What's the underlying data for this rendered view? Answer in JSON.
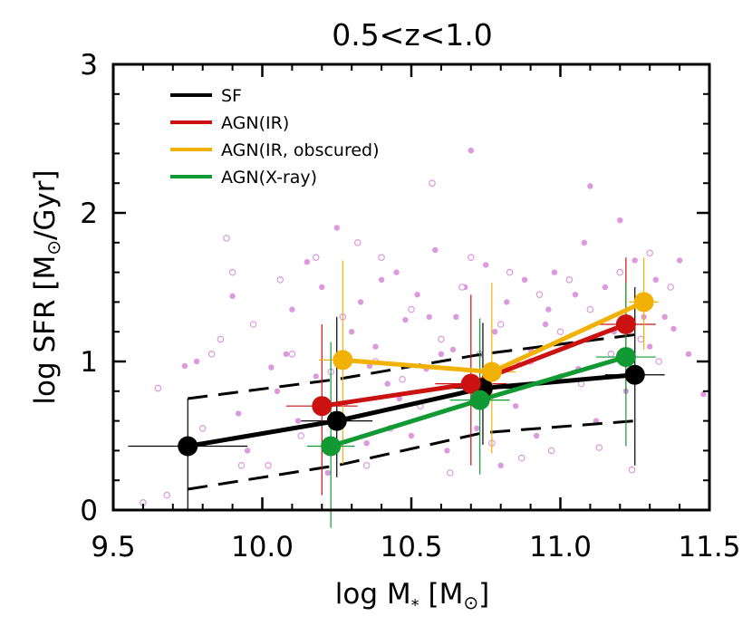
{
  "chart_data": {
    "type": "scatter",
    "title": "0.5<z<1.0",
    "xlabel": "log M",
    "xlabel_sub": "*",
    "xlabel_unit": "[M",
    "xlabel_unit_sub": "⊙",
    "xlabel_unit_close": "]",
    "ylabel": "log SFR [M",
    "ylabel_sub": "⊙",
    "ylabel_unit": "/Gyr]",
    "xlim": [
      9.5,
      11.5
    ],
    "ylim": [
      0,
      3
    ],
    "xticks": [
      {
        "value": 9.5,
        "label": "9.5"
      },
      {
        "value": 10.0,
        "label": "10.0"
      },
      {
        "value": 10.5,
        "label": "10.5"
      },
      {
        "value": 11.0,
        "label": "11.0"
      },
      {
        "value": 11.5,
        "label": "11.5"
      }
    ],
    "yticks": [
      {
        "value": 0,
        "label": "0"
      },
      {
        "value": 1,
        "label": "1"
      },
      {
        "value": 2,
        "label": "2"
      },
      {
        "value": 3,
        "label": "3"
      }
    ],
    "legend_position": "top-left",
    "series": [
      {
        "name": "SF",
        "color": "#000000",
        "points": [
          {
            "x": 9.75,
            "y": 0.43,
            "xerr": 0.2,
            "yerr_lo": 0.44,
            "yerr_hi": 0.32
          },
          {
            "x": 10.25,
            "y": 0.6,
            "xerr": 0.12,
            "yerr_lo": 0.38,
            "yerr_hi": 0.7
          },
          {
            "x": 10.74,
            "y": 0.82,
            "xerr": 0.1,
            "yerr_lo": 0.38,
            "yerr_hi": 0.44
          },
          {
            "x": 11.25,
            "y": 0.91,
            "xerr": 0.1,
            "yerr_lo": 0.61,
            "yerr_hi": 0.59
          }
        ]
      },
      {
        "name": "AGN(IR)",
        "color": "#cc1111",
        "points": [
          {
            "x": 10.2,
            "y": 0.7,
            "xerr": 0.12,
            "yerr_lo": 0.6,
            "yerr_hi": 0.55
          },
          {
            "x": 10.7,
            "y": 0.85,
            "xerr": 0.12,
            "yerr_lo": 0.55,
            "yerr_hi": 0.6
          },
          {
            "x": 11.22,
            "y": 1.25,
            "xerr": 0.1,
            "yerr_lo": 0.45,
            "yerr_hi": 0.45
          }
        ]
      },
      {
        "name": "AGN(IR, obscured)",
        "color": "#f2b205",
        "points": [
          {
            "x": 10.27,
            "y": 1.01,
            "xerr": 0.08,
            "yerr_lo": 0.7,
            "yerr_hi": 0.67
          },
          {
            "x": 10.77,
            "y": 0.93,
            "xerr": 0.08,
            "yerr_lo": 0.55,
            "yerr_hi": 0.6
          },
          {
            "x": 11.28,
            "y": 1.4,
            "xerr": 0.05,
            "yerr_lo": 0.32,
            "yerr_hi": 0.3
          }
        ]
      },
      {
        "name": "AGN(X-ray)",
        "color": "#119933",
        "points": [
          {
            "x": 10.23,
            "y": 0.43,
            "xerr": 0.08,
            "yerr_lo": 0.55,
            "yerr_hi": 0.7
          },
          {
            "x": 10.73,
            "y": 0.74,
            "xerr": 0.1,
            "yerr_lo": 0.5,
            "yerr_hi": 0.55
          },
          {
            "x": 11.22,
            "y": 1.03,
            "xerr": 0.1,
            "yerr_lo": 0.6,
            "yerr_hi": 0.5
          }
        ]
      }
    ],
    "sf_scatter_band": {
      "color": "#000000",
      "style": "dashed",
      "upper": [
        {
          "x": 9.75,
          "y": 0.75
        },
        {
          "x": 10.25,
          "y": 0.88
        },
        {
          "x": 10.74,
          "y": 1.05
        },
        {
          "x": 11.25,
          "y": 1.18
        }
      ],
      "lower": [
        {
          "x": 9.75,
          "y": 0.14
        },
        {
          "x": 10.25,
          "y": 0.3
        },
        {
          "x": 10.74,
          "y": 0.52
        },
        {
          "x": 11.25,
          "y": 0.6
        }
      ]
    },
    "background_points": {
      "color": "#dd99dd",
      "filled": [
        [
          9.74,
          0.97
        ],
        [
          9.78,
          1.0
        ],
        [
          9.9,
          1.44
        ],
        [
          9.92,
          0.65
        ],
        [
          9.95,
          0.4
        ],
        [
          10.03,
          0.96
        ],
        [
          10.05,
          0.8
        ],
        [
          10.08,
          1.05
        ],
        [
          10.1,
          1.35
        ],
        [
          10.12,
          0.6
        ],
        [
          10.15,
          1.67
        ],
        [
          10.18,
          0.9
        ],
        [
          10.2,
          1.5
        ],
        [
          10.22,
          0.25
        ],
        [
          10.25,
          1.9
        ],
        [
          10.28,
          0.72
        ],
        [
          10.3,
          1.2
        ],
        [
          10.33,
          1.4
        ],
        [
          10.35,
          0.45
        ],
        [
          10.38,
          1.1
        ],
        [
          10.4,
          1.55
        ],
        [
          10.42,
          0.85
        ],
        [
          10.45,
          1.6
        ],
        [
          10.48,
          1.28
        ],
        [
          10.5,
          0.5
        ],
        [
          10.52,
          1.45
        ],
        [
          10.55,
          0.95
        ],
        [
          10.58,
          1.75
        ],
        [
          10.6,
          1.05
        ],
        [
          10.62,
          0.4
        ],
        [
          10.65,
          1.3
        ],
        [
          10.68,
          1.5
        ],
        [
          10.7,
          2.42
        ],
        [
          10.72,
          0.55
        ],
        [
          10.75,
          1.65
        ],
        [
          10.78,
          1.2
        ],
        [
          10.8,
          0.3
        ],
        [
          10.82,
          1.4
        ],
        [
          10.85,
          0.7
        ],
        [
          10.88,
          1.55
        ],
        [
          10.9,
          1.08
        ],
        [
          10.92,
          0.5
        ],
        [
          10.95,
          1.25
        ],
        [
          10.98,
          1.6
        ],
        [
          11.0,
          0.9
        ],
        [
          11.02,
          1.1
        ],
        [
          11.05,
          1.45
        ],
        [
          11.08,
          1.8
        ],
        [
          11.1,
          2.18
        ],
        [
          11.12,
          0.6
        ],
        [
          11.15,
          1.5
        ],
        [
          11.18,
          1.2
        ],
        [
          11.2,
          1.95
        ],
        [
          11.22,
          0.8
        ],
        [
          11.25,
          1.68
        ],
        [
          11.28,
          1.3
        ],
        [
          11.3,
          1.1
        ],
        [
          11.32,
          1.55
        ],
        [
          11.35,
          1.3
        ],
        [
          11.38,
          1.22
        ],
        [
          11.4,
          1.68
        ],
        [
          11.43,
          1.05
        ],
        [
          11.48,
          0.78
        ],
        [
          10.36,
          0.97
        ],
        [
          10.46,
          0.75
        ],
        [
          10.56,
          1.3
        ],
        [
          10.64,
          1.08
        ],
        [
          10.86,
          0.98
        ],
        [
          10.96,
          1.35
        ],
        [
          11.06,
          0.95
        ]
      ],
      "open": [
        [
          9.6,
          0.05
        ],
        [
          9.65,
          0.82
        ],
        [
          9.68,
          0.1
        ],
        [
          9.8,
          0.55
        ],
        [
          9.83,
          1.05
        ],
        [
          9.86,
          1.15
        ],
        [
          9.88,
          1.83
        ],
        [
          9.9,
          1.6
        ],
        [
          9.93,
          0.3
        ],
        [
          9.97,
          1.25
        ],
        [
          10.02,
          0.3
        ],
        [
          10.06,
          1.55
        ],
        [
          10.1,
          1.05
        ],
        [
          10.13,
          0.5
        ],
        [
          10.18,
          1.7
        ],
        [
          10.23,
          0.93
        ],
        [
          10.27,
          1.3
        ],
        [
          10.32,
          1.8
        ],
        [
          10.35,
          0.3
        ],
        [
          10.38,
          1.0
        ],
        [
          10.4,
          1.7
        ],
        [
          10.43,
          0.55
        ],
        [
          10.47,
          0.88
        ],
        [
          10.5,
          1.35
        ],
        [
          10.53,
          0.7
        ],
        [
          10.57,
          2.2
        ],
        [
          10.6,
          1.15
        ],
        [
          10.63,
          0.25
        ],
        [
          10.67,
          1.5
        ],
        [
          10.7,
          1.7
        ],
        [
          10.73,
          1.05
        ],
        [
          10.77,
          0.45
        ],
        [
          10.8,
          1.25
        ],
        [
          10.83,
          1.6
        ],
        [
          10.87,
          0.35
        ],
        [
          10.9,
          1.0
        ],
        [
          10.93,
          1.45
        ],
        [
          10.97,
          0.4
        ],
        [
          11.0,
          1.2
        ],
        [
          11.03,
          1.55
        ],
        [
          11.07,
          0.85
        ],
        [
          11.1,
          1.35
        ],
        [
          11.13,
          0.42
        ],
        [
          11.17,
          1.05
        ],
        [
          11.2,
          1.6
        ],
        [
          11.24,
          0.27
        ],
        [
          11.27,
          1.15
        ],
        [
          11.3,
          1.73
        ],
        [
          11.33,
          1.0
        ],
        [
          11.37,
          1.5
        ]
      ]
    }
  }
}
